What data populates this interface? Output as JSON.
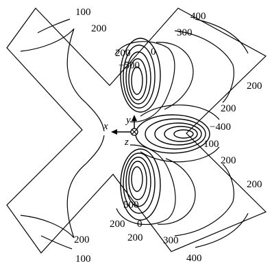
{
  "contour_labels": {
    "top_left_100": "100",
    "top_left_200": "200",
    "top_right_400": "400",
    "top_right_300": "300",
    "upper_200": "200",
    "upper_0": "0",
    "upper_neg500": "−500",
    "right_upper_200": "200",
    "mid_200": "200",
    "mid_neg400": "−400",
    "mid_100": "100",
    "mid_lower_200": "200",
    "right_lower_200": "200",
    "lower_500": "500",
    "lower_200": "200",
    "lower_0": "0",
    "lower_300": "300",
    "bottom_left_200": "200",
    "bottom_200": "200",
    "bottom_left_100": "100",
    "bottom_right_400": "400"
  },
  "axes": {
    "x": "x",
    "y": "y",
    "z": "z"
  }
}
